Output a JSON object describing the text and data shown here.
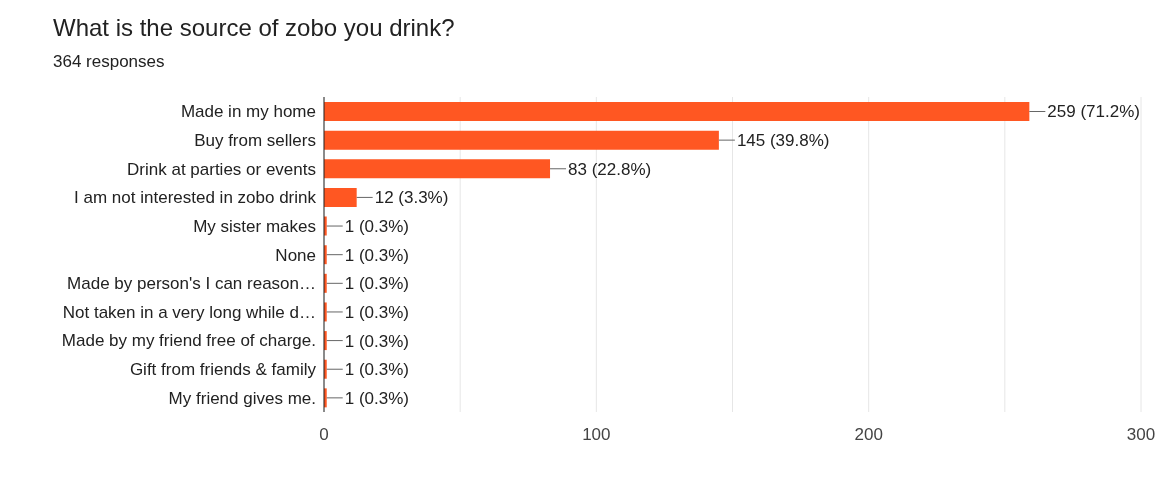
{
  "chart_data": {
    "type": "bar",
    "orientation": "horizontal",
    "title": "What is the source of zobo you drink?",
    "subtitle": "364 responses",
    "categories": [
      "Made in my home",
      "Buy from sellers",
      "Drink at parties or events",
      "I am not interested in zobo drink",
      "My sister makes",
      "None",
      "Made by person's I can reason…",
      "Not taken in a very long while d…",
      "Made by my friend free of charge.",
      "Gift from friends & family",
      "My friend gives me."
    ],
    "values": [
      259,
      145,
      83,
      12,
      1,
      1,
      1,
      1,
      1,
      1,
      1
    ],
    "value_labels": [
      "259 (71.2%)",
      "145 (39.8%)",
      "83 (22.8%)",
      "12 (3.3%)",
      "1 (0.3%)",
      "1 (0.3%)",
      "1 (0.3%)",
      "1 (0.3%)",
      "1 (0.3%)",
      "1 (0.3%)",
      "1 (0.3%)"
    ],
    "color": "#ff5722",
    "xlim": [
      0,
      300
    ],
    "xticks": [
      0,
      {
        "value": 50,
        "label": null
      },
      100,
      {
        "value": 150,
        "label": null
      },
      200,
      {
        "value": 250,
        "label": null
      },
      300
    ],
    "grid": "x"
  }
}
